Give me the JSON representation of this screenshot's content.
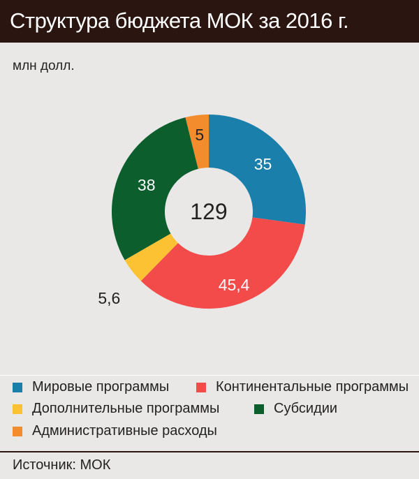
{
  "header": {
    "title": "Структура бюджета МОК за 2016 г."
  },
  "unit_label": "млн долл.",
  "center_total": "129",
  "source": "Источник: МОК",
  "colors": {
    "header_bg": "#2b1510",
    "background": "#e9e8e6"
  },
  "chart_data": {
    "type": "pie",
    "donut": true,
    "title": "Структура бюджета МОК за 2016 г.",
    "unit": "млн долл.",
    "total": 129,
    "slices": [
      {
        "name": "Мировые программы",
        "value": 35,
        "label": "35",
        "color": "#1a80ab"
      },
      {
        "name": "Континентальные программы",
        "value": 45.4,
        "label": "45,4",
        "color": "#f34a4a"
      },
      {
        "name": "Дополнительные программы",
        "value": 5.6,
        "label": "5,6",
        "color": "#fcc234"
      },
      {
        "name": "Субсидии",
        "value": 38,
        "label": "38",
        "color": "#0c5e2d"
      },
      {
        "name": "Административные расходы",
        "value": 5,
        "label": "5",
        "color": "#f38c2d"
      }
    ],
    "legend_placement": "bottom"
  }
}
